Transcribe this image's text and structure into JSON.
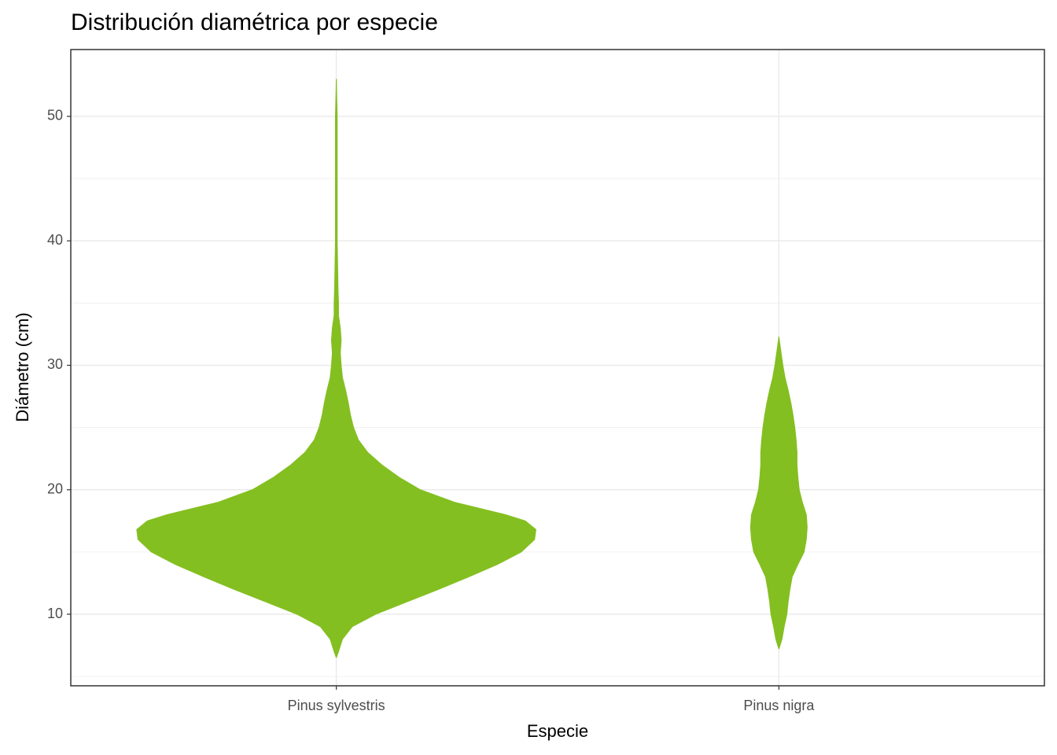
{
  "chart_data": {
    "type": "violin",
    "title": "Distribución diamétrica por especie",
    "x_label": "Especie",
    "y_label": "Diámetro (cm)",
    "categories": [
      "Pinus sylvestris",
      "Pinus nigra"
    ],
    "xlim": [
      0.4,
      2.6
    ],
    "ylim": [
      4.25,
      55.37
    ],
    "yticks": [
      10,
      20,
      30,
      40,
      50
    ],
    "minor_yticks": [
      5,
      15,
      25,
      35,
      45
    ],
    "grid": true,
    "color": "#84bf21",
    "series": [
      {
        "name": "Pinus sylvestris",
        "y": [
          6.5,
          7,
          8,
          9,
          10,
          11,
          12,
          13,
          14,
          15,
          16,
          16.8,
          17.5,
          18,
          19,
          20,
          21,
          22,
          23,
          24,
          25,
          26,
          27,
          28,
          29,
          30,
          31,
          32,
          33,
          34,
          35,
          36,
          38,
          40,
          45,
          50,
          53
        ],
        "half_width": [
          0,
          0.005,
          0.014,
          0.036,
          0.089,
          0.16,
          0.231,
          0.299,
          0.364,
          0.418,
          0.448,
          0.451,
          0.427,
          0.382,
          0.267,
          0.19,
          0.142,
          0.103,
          0.071,
          0.05,
          0.039,
          0.032,
          0.027,
          0.021,
          0.014,
          0.011,
          0.009,
          0.011,
          0.009,
          0.005,
          0.005,
          0.004,
          0.003,
          0.002,
          0.002,
          0.002,
          0
        ]
      },
      {
        "name": "Pinus nigra",
        "y": [
          7.2,
          8,
          9,
          10,
          11,
          12,
          13,
          14,
          15,
          16,
          17,
          18,
          19,
          20,
          21,
          22,
          23,
          24,
          25,
          26,
          27,
          28,
          29,
          30,
          31,
          32.3
        ],
        "half_width": [
          0,
          0.007,
          0.012,
          0.018,
          0.021,
          0.025,
          0.03,
          0.043,
          0.057,
          0.062,
          0.064,
          0.062,
          0.053,
          0.046,
          0.043,
          0.041,
          0.041,
          0.039,
          0.036,
          0.032,
          0.027,
          0.021,
          0.014,
          0.009,
          0.005,
          0
        ]
      }
    ]
  }
}
